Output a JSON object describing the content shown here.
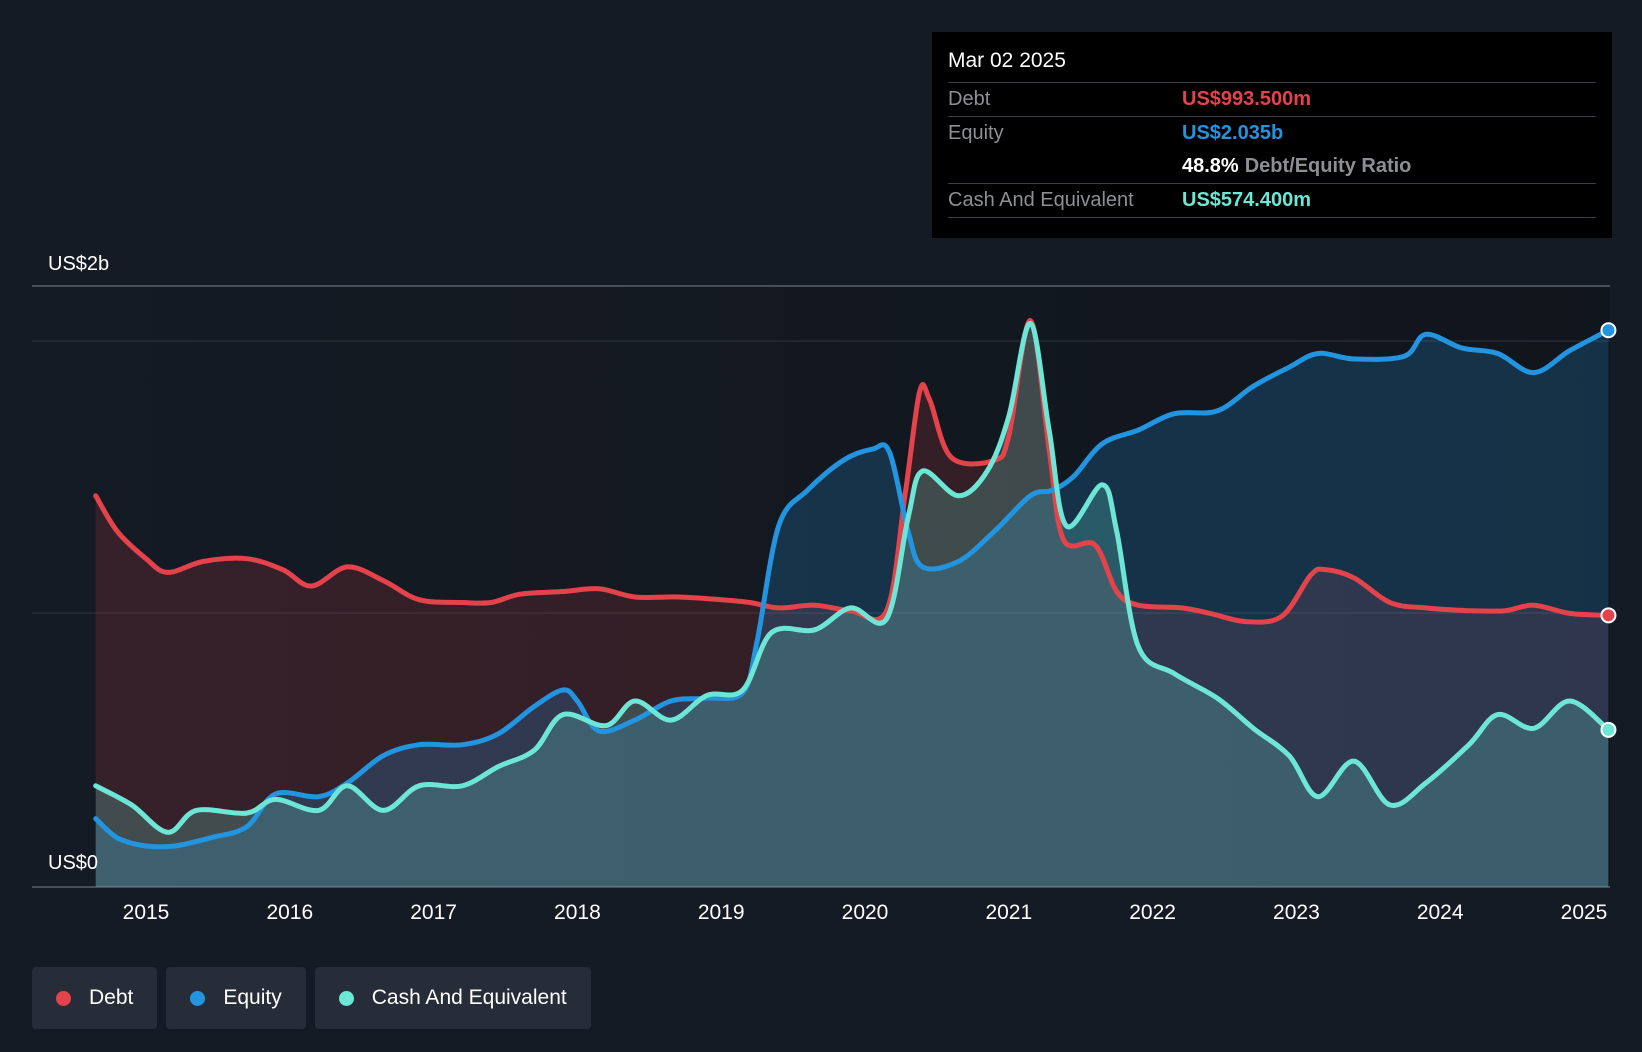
{
  "tooltip": {
    "date": "Mar 02 2025",
    "debt_label": "Debt",
    "debt_value": "US$993.500m",
    "equity_label": "Equity",
    "equity_value": "US$2.035b",
    "ratio_value": "48.8%",
    "ratio_label": "Debt/Equity Ratio",
    "cash_label": "Cash And Equivalent",
    "cash_value": "US$574.400m"
  },
  "legend": [
    {
      "label": "Debt",
      "color": "#e5434b"
    },
    {
      "label": "Equity",
      "color": "#2394df"
    },
    {
      "label": "Cash And Equivalent",
      "color": "#6ee6d6"
    }
  ],
  "chart_data": {
    "type": "area",
    "x_ticks": [
      "2015",
      "2016",
      "2017",
      "2018",
      "2019",
      "2020",
      "2021",
      "2022",
      "2023",
      "2024",
      "2025"
    ],
    "x_range": [
      2014.6,
      2025.17
    ],
    "y_range": [
      0,
      2.2
    ],
    "y_unit": "US$ billions",
    "y_ticks": [
      {
        "value": 2.2,
        "label": "US$2b"
      },
      {
        "value": 0,
        "label": "US$0"
      }
    ],
    "series": [
      {
        "name": "Debt",
        "color": "#e5434b",
        "points": [
          [
            2014.65,
            1.43
          ],
          [
            2014.8,
            1.3
          ],
          [
            2015.0,
            1.2
          ],
          [
            2015.15,
            1.15
          ],
          [
            2015.4,
            1.19
          ],
          [
            2015.7,
            1.2
          ],
          [
            2015.95,
            1.16
          ],
          [
            2016.15,
            1.1
          ],
          [
            2016.4,
            1.17
          ],
          [
            2016.65,
            1.12
          ],
          [
            2016.9,
            1.05
          ],
          [
            2017.2,
            1.04
          ],
          [
            2017.4,
            1.04
          ],
          [
            2017.6,
            1.07
          ],
          [
            2017.9,
            1.08
          ],
          [
            2018.15,
            1.09
          ],
          [
            2018.4,
            1.06
          ],
          [
            2018.7,
            1.06
          ],
          [
            2019.0,
            1.05
          ],
          [
            2019.2,
            1.04
          ],
          [
            2019.4,
            1.02
          ],
          [
            2019.65,
            1.03
          ],
          [
            2019.9,
            1.01
          ],
          [
            2020.15,
            1.01
          ],
          [
            2020.28,
            1.44
          ],
          [
            2020.38,
            1.81
          ],
          [
            2020.45,
            1.78
          ],
          [
            2020.6,
            1.57
          ],
          [
            2020.9,
            1.56
          ],
          [
            2021.0,
            1.65
          ],
          [
            2021.15,
            2.07
          ],
          [
            2021.28,
            1.6
          ],
          [
            2021.38,
            1.27
          ],
          [
            2021.6,
            1.25
          ],
          [
            2021.75,
            1.08
          ],
          [
            2021.9,
            1.03
          ],
          [
            2022.2,
            1.02
          ],
          [
            2022.4,
            1.0
          ],
          [
            2022.65,
            0.97
          ],
          [
            2022.9,
            0.99
          ],
          [
            2023.1,
            1.14
          ],
          [
            2023.2,
            1.16
          ],
          [
            2023.4,
            1.13
          ],
          [
            2023.65,
            1.04
          ],
          [
            2023.9,
            1.02
          ],
          [
            2024.2,
            1.01
          ],
          [
            2024.45,
            1.01
          ],
          [
            2024.65,
            1.03
          ],
          [
            2024.9,
            1.0
          ],
          [
            2025.17,
            0.993
          ]
        ]
      },
      {
        "name": "Equity",
        "color": "#2394df",
        "points": [
          [
            2014.65,
            0.25
          ],
          [
            2014.8,
            0.18
          ],
          [
            2015.0,
            0.15
          ],
          [
            2015.2,
            0.15
          ],
          [
            2015.45,
            0.18
          ],
          [
            2015.7,
            0.22
          ],
          [
            2015.9,
            0.34
          ],
          [
            2016.2,
            0.33
          ],
          [
            2016.4,
            0.38
          ],
          [
            2016.65,
            0.48
          ],
          [
            2016.9,
            0.52
          ],
          [
            2017.2,
            0.52
          ],
          [
            2017.45,
            0.56
          ],
          [
            2017.7,
            0.66
          ],
          [
            2017.9,
            0.72
          ],
          [
            2018.0,
            0.68
          ],
          [
            2018.15,
            0.57
          ],
          [
            2018.4,
            0.61
          ],
          [
            2018.65,
            0.68
          ],
          [
            2018.9,
            0.69
          ],
          [
            2019.15,
            0.71
          ],
          [
            2019.25,
            0.9
          ],
          [
            2019.4,
            1.32
          ],
          [
            2019.6,
            1.45
          ],
          [
            2019.85,
            1.56
          ],
          [
            2020.05,
            1.6
          ],
          [
            2020.17,
            1.59
          ],
          [
            2020.3,
            1.3
          ],
          [
            2020.4,
            1.17
          ],
          [
            2020.65,
            1.19
          ],
          [
            2020.9,
            1.3
          ],
          [
            2021.15,
            1.43
          ],
          [
            2021.3,
            1.45
          ],
          [
            2021.45,
            1.5
          ],
          [
            2021.65,
            1.62
          ],
          [
            2021.9,
            1.67
          ],
          [
            2022.15,
            1.73
          ],
          [
            2022.45,
            1.74
          ],
          [
            2022.7,
            1.83
          ],
          [
            2022.95,
            1.9
          ],
          [
            2023.15,
            1.95
          ],
          [
            2023.4,
            1.93
          ],
          [
            2023.75,
            1.94
          ],
          [
            2023.9,
            2.02
          ],
          [
            2024.15,
            1.97
          ],
          [
            2024.4,
            1.95
          ],
          [
            2024.65,
            1.88
          ],
          [
            2024.9,
            1.96
          ],
          [
            2025.17,
            2.035
          ]
        ]
      },
      {
        "name": "Cash And Equivalent",
        "color": "#6ee6d6",
        "points": [
          [
            2014.65,
            0.37
          ],
          [
            2014.9,
            0.3
          ],
          [
            2015.15,
            0.2
          ],
          [
            2015.35,
            0.28
          ],
          [
            2015.7,
            0.27
          ],
          [
            2015.9,
            0.32
          ],
          [
            2016.2,
            0.28
          ],
          [
            2016.4,
            0.37
          ],
          [
            2016.65,
            0.28
          ],
          [
            2016.9,
            0.37
          ],
          [
            2017.2,
            0.37
          ],
          [
            2017.45,
            0.44
          ],
          [
            2017.7,
            0.5
          ],
          [
            2017.9,
            0.63
          ],
          [
            2018.2,
            0.59
          ],
          [
            2018.4,
            0.68
          ],
          [
            2018.65,
            0.61
          ],
          [
            2018.9,
            0.7
          ],
          [
            2019.15,
            0.72
          ],
          [
            2019.35,
            0.93
          ],
          [
            2019.65,
            0.94
          ],
          [
            2019.9,
            1.02
          ],
          [
            2020.15,
            0.98
          ],
          [
            2020.3,
            1.35
          ],
          [
            2020.4,
            1.52
          ],
          [
            2020.65,
            1.43
          ],
          [
            2020.85,
            1.52
          ],
          [
            2021.0,
            1.72
          ],
          [
            2021.15,
            2.06
          ],
          [
            2021.28,
            1.67
          ],
          [
            2021.4,
            1.32
          ],
          [
            2021.65,
            1.47
          ],
          [
            2021.75,
            1.3
          ],
          [
            2021.9,
            0.88
          ],
          [
            2022.15,
            0.78
          ],
          [
            2022.45,
            0.69
          ],
          [
            2022.7,
            0.58
          ],
          [
            2022.95,
            0.48
          ],
          [
            2023.15,
            0.33
          ],
          [
            2023.4,
            0.46
          ],
          [
            2023.65,
            0.3
          ],
          [
            2023.9,
            0.38
          ],
          [
            2024.2,
            0.52
          ],
          [
            2024.4,
            0.63
          ],
          [
            2024.65,
            0.58
          ],
          [
            2024.9,
            0.68
          ],
          [
            2025.17,
            0.5744
          ]
        ]
      }
    ]
  }
}
